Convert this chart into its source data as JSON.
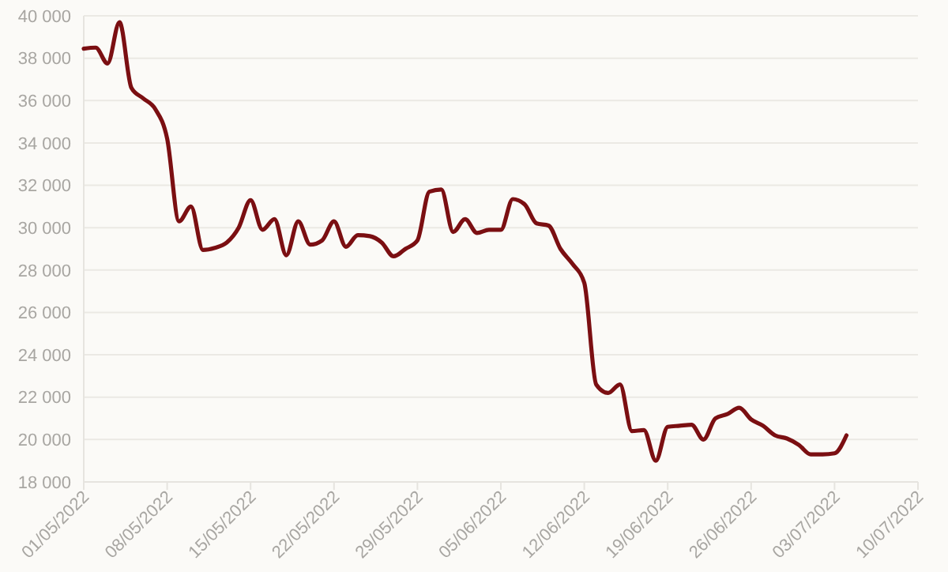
{
  "chart_data": {
    "type": "line",
    "x": [
      "2022-05-01",
      "2022-05-02",
      "2022-05-03",
      "2022-05-04",
      "2022-05-05",
      "2022-05-06",
      "2022-05-07",
      "2022-05-08",
      "2022-05-09",
      "2022-05-10",
      "2022-05-11",
      "2022-05-12",
      "2022-05-13",
      "2022-05-14",
      "2022-05-15",
      "2022-05-16",
      "2022-05-17",
      "2022-05-18",
      "2022-05-19",
      "2022-05-20",
      "2022-05-21",
      "2022-05-22",
      "2022-05-23",
      "2022-05-24",
      "2022-05-25",
      "2022-05-26",
      "2022-05-27",
      "2022-05-28",
      "2022-05-29",
      "2022-05-30",
      "2022-05-31",
      "2022-06-01",
      "2022-06-02",
      "2022-06-03",
      "2022-06-04",
      "2022-06-05",
      "2022-06-06",
      "2022-06-07",
      "2022-06-08",
      "2022-06-09",
      "2022-06-10",
      "2022-06-11",
      "2022-06-12",
      "2022-06-13",
      "2022-06-14",
      "2022-06-15",
      "2022-06-16",
      "2022-06-17",
      "2022-06-18",
      "2022-06-19",
      "2022-06-20",
      "2022-06-21",
      "2022-06-22",
      "2022-06-23",
      "2022-06-24",
      "2022-06-25",
      "2022-06-26",
      "2022-06-27",
      "2022-06-28",
      "2022-06-29",
      "2022-06-30",
      "2022-07-01",
      "2022-07-02",
      "2022-07-03",
      "2022-07-04"
    ],
    "series": [
      {
        "color": "#7b0f12",
        "values": [
          38450,
          38500,
          37750,
          39700,
          36600,
          36100,
          35600,
          34200,
          30300,
          31000,
          28950,
          29050,
          29300,
          30000,
          31300,
          29900,
          30400,
          28700,
          30300,
          29200,
          29400,
          30300,
          29100,
          29650,
          29600,
          29300,
          28650,
          29000,
          29400,
          31700,
          31800,
          29800,
          30400,
          29750,
          29900,
          29900,
          31350,
          31100,
          30200,
          30100,
          29000,
          28300,
          27400,
          22600,
          22200,
          22600,
          20400,
          20450,
          19000,
          20600,
          20650,
          20700,
          20000,
          21000,
          21200,
          21500,
          20950,
          20650,
          20200,
          20050,
          19750,
          19300,
          19300,
          19350,
          20200
        ]
      }
    ],
    "xlim": [
      "2022-05-01",
      "2022-07-10"
    ],
    "xticks": [
      {
        "value": "2022-05-01",
        "label": "01/05/2022"
      },
      {
        "value": "2022-05-08",
        "label": "08/05/2022"
      },
      {
        "value": "2022-05-15",
        "label": "15/05/2022"
      },
      {
        "value": "2022-05-22",
        "label": "22/05/2022"
      },
      {
        "value": "2022-05-29",
        "label": "29/05/2022"
      },
      {
        "value": "2022-06-05",
        "label": "05/06/2022"
      },
      {
        "value": "2022-06-12",
        "label": "12/06/2022"
      },
      {
        "value": "2022-06-19",
        "label": "19/06/2022"
      },
      {
        "value": "2022-06-26",
        "label": "26/06/2022"
      },
      {
        "value": "2022-07-03",
        "label": "03/07/2022"
      },
      {
        "value": "2022-07-10",
        "label": "10/07/2022"
      }
    ],
    "ylim": [
      18000,
      40000
    ],
    "yticks": [
      {
        "value": 18000,
        "label": "18 000"
      },
      {
        "value": 20000,
        "label": "20 000"
      },
      {
        "value": 22000,
        "label": "22 000"
      },
      {
        "value": 24000,
        "label": "24 000"
      },
      {
        "value": 26000,
        "label": "26 000"
      },
      {
        "value": 28000,
        "label": "28 000"
      },
      {
        "value": 30000,
        "label": "30 000"
      },
      {
        "value": 32000,
        "label": "32 000"
      },
      {
        "value": 34000,
        "label": "34 000"
      },
      {
        "value": 36000,
        "label": "36 000"
      },
      {
        "value": 38000,
        "label": "38 000"
      },
      {
        "value": 40000,
        "label": "40 000"
      }
    ],
    "grid": "y",
    "marker": "none",
    "line_style": "solid"
  }
}
